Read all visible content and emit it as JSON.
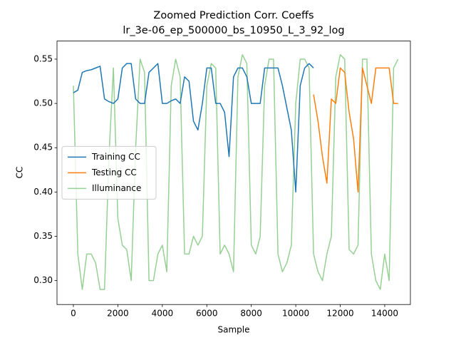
{
  "chart_data": {
    "type": "line",
    "title": "Zoomed Prediction Corr. Coeffs",
    "subtitle": "lr_3e-06_ep_500000_bs_10950_L_3_92_log",
    "x_label": "Sample",
    "y_label": "CC",
    "x": [
      0,
      200,
      400,
      600,
      800,
      1000,
      1200,
      1400,
      1600,
      1800,
      2000,
      2200,
      2400,
      2600,
      2800,
      3000,
      3200,
      3400,
      3600,
      3800,
      4000,
      4200,
      4400,
      4600,
      4800,
      5000,
      5200,
      5400,
      5600,
      5800,
      6000,
      6200,
      6400,
      6600,
      6800,
      7000,
      7200,
      7400,
      7600,
      7800,
      8000,
      8200,
      8400,
      8600,
      8800,
      9000,
      9200,
      9400,
      9600,
      9800,
      10000,
      10200,
      10400,
      10600,
      10800,
      11000,
      11200,
      11400,
      11600,
      11800,
      12000,
      12200,
      12400,
      12600,
      12800,
      13000,
      13200,
      13400,
      13600,
      13800,
      14000,
      14200,
      14400,
      14600
    ],
    "series": [
      {
        "name": "Training CC",
        "color": "#1f77b4",
        "values": [
          0.512,
          0.515,
          0.535,
          0.537,
          0.538,
          0.54,
          0.542,
          0.505,
          0.502,
          0.5,
          0.505,
          0.54,
          0.545,
          0.545,
          0.505,
          0.5,
          0.5,
          0.535,
          0.54,
          0.545,
          0.5,
          0.5,
          0.503,
          0.505,
          0.5,
          0.53,
          0.525,
          0.48,
          0.47,
          0.5,
          0.54,
          0.54,
          0.5,
          0.5,
          0.49,
          0.44,
          0.53,
          0.54,
          0.54,
          0.53,
          0.5,
          0.5,
          0.5,
          0.54,
          0.54,
          0.54,
          0.54,
          0.52,
          0.495,
          0.47,
          0.4,
          0.52,
          0.54,
          0.545,
          0.54,
          null,
          null,
          null,
          null,
          null,
          null,
          null,
          null,
          null,
          null,
          null,
          null,
          null,
          null,
          null,
          null,
          null,
          null,
          null
        ]
      },
      {
        "name": "Testing CC",
        "color": "#ff7f0e",
        "values": [
          null,
          null,
          null,
          null,
          null,
          null,
          null,
          null,
          null,
          null,
          null,
          null,
          null,
          null,
          null,
          null,
          null,
          null,
          null,
          null,
          null,
          null,
          null,
          null,
          null,
          null,
          null,
          null,
          null,
          null,
          null,
          null,
          null,
          null,
          null,
          null,
          null,
          null,
          null,
          null,
          null,
          null,
          null,
          null,
          null,
          null,
          null,
          null,
          null,
          null,
          null,
          null,
          null,
          null,
          0.51,
          0.48,
          0.44,
          0.41,
          0.505,
          0.5,
          0.54,
          0.535,
          0.49,
          0.46,
          0.4,
          0.54,
          0.52,
          0.5,
          0.54,
          0.54,
          0.54,
          0.54,
          0.5,
          0.5
        ]
      },
      {
        "name": "Illuminance",
        "color": "#97d094",
        "values": [
          0.52,
          0.33,
          0.29,
          0.33,
          0.33,
          0.32,
          0.29,
          0.29,
          0.44,
          0.54,
          0.37,
          0.34,
          0.335,
          0.3,
          0.45,
          0.55,
          0.535,
          0.3,
          0.3,
          0.33,
          0.34,
          0.31,
          0.52,
          0.55,
          0.53,
          0.33,
          0.33,
          0.35,
          0.34,
          0.35,
          0.52,
          0.545,
          0.54,
          0.33,
          0.34,
          0.33,
          0.31,
          0.53,
          0.555,
          0.545,
          0.34,
          0.33,
          0.35,
          0.52,
          0.55,
          0.55,
          0.33,
          0.31,
          0.32,
          0.34,
          0.5,
          0.55,
          0.55,
          0.54,
          0.33,
          0.31,
          0.3,
          0.33,
          0.35,
          0.53,
          0.555,
          0.55,
          0.335,
          0.33,
          0.34,
          0.55,
          0.55,
          0.33,
          0.3,
          0.29,
          0.33,
          0.3,
          0.54,
          0.55
        ]
      }
    ],
    "xlim": [
      -737,
      15155
    ],
    "ylim": [
      0.273,
      0.5704
    ],
    "xticks": [
      0,
      2000,
      4000,
      6000,
      8000,
      10000,
      12000,
      14000
    ],
    "yticks": [
      {
        "value": 0.3,
        "label": "0.30"
      },
      0.35,
      {
        "value": 0.4,
        "label": "0.40"
      },
      0.45,
      {
        "value": 0.5,
        "label": "0.50"
      },
      0.55
    ],
    "legend": "center left"
  }
}
